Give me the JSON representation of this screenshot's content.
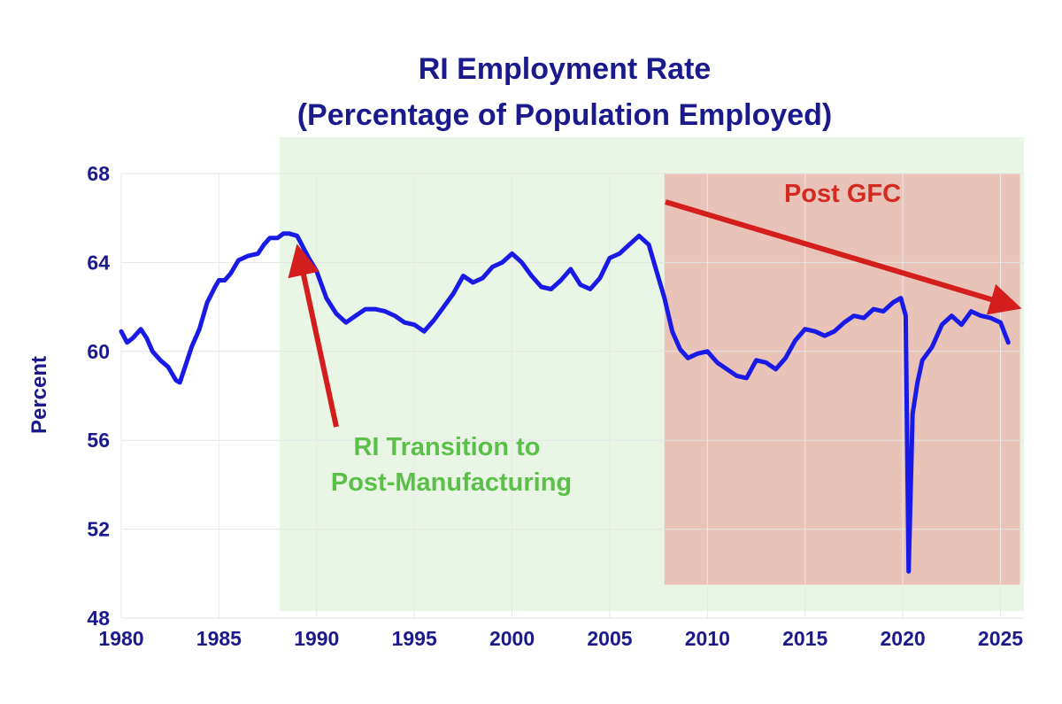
{
  "chart_data": {
    "type": "line",
    "title": "RI Employment Rate",
    "subtitle": "(Percentage of Population Employed)",
    "xlabel": "",
    "ylabel": "Percent",
    "xlim": [
      1980,
      2026.2
    ],
    "ylim": [
      48,
      68
    ],
    "x_ticks": [
      "1980",
      "1985",
      "1990",
      "1995",
      "2000",
      "2005",
      "2010",
      "2015",
      "2020",
      "2025"
    ],
    "y_ticks": [
      "48",
      "52",
      "56",
      "60",
      "64",
      "68"
    ],
    "grid": true,
    "series_color": "#1a1ae6",
    "series": [
      {
        "x": [
          1980.0,
          1980.3,
          1980.6,
          1981.0,
          1981.3,
          1981.6,
          1982.0,
          1982.4,
          1982.8,
          1983.0,
          1983.3,
          1983.6,
          1984.0,
          1984.4,
          1984.8,
          1985.0,
          1985.3,
          1985.6,
          1986.0,
          1986.5,
          1987.0,
          1987.3,
          1987.6,
          1988.0,
          1988.3,
          1988.6,
          1989.0,
          1989.3,
          1989.6,
          1990.0,
          1990.5,
          1991.0,
          1991.5,
          1992.0,
          1992.5,
          1993.0,
          1993.5,
          1994.0,
          1994.5,
          1995.0,
          1995.5,
          1996.0,
          1996.5,
          1997.0,
          1997.5,
          1998.0,
          1998.5,
          1999.0,
          1999.5,
          2000.0,
          2000.5,
          2001.0,
          2001.5,
          2002.0,
          2002.5,
          2003.0,
          2003.5,
          2004.0,
          2004.5,
          2005.0,
          2005.5,
          2006.0,
          2006.5,
          2007.0,
          2007.4,
          2007.8,
          2008.2,
          2008.6,
          2009.0,
          2009.5,
          2010.0,
          2010.5,
          2011.0,
          2011.5,
          2012.0,
          2012.5,
          2013.0,
          2013.5,
          2014.0,
          2014.5,
          2015.0,
          2015.5,
          2016.0,
          2016.5,
          2017.0,
          2017.5,
          2018.0,
          2018.5,
          2019.0,
          2019.5,
          2019.9,
          2020.15,
          2020.3,
          2020.5,
          2020.75,
          2021.0,
          2021.5,
          2022.0,
          2022.5,
          2023.0,
          2023.5,
          2024.0,
          2024.5,
          2025.0,
          2025.4
        ],
        "y": [
          60.9,
          60.4,
          60.6,
          61.0,
          60.6,
          60.0,
          59.6,
          59.3,
          58.7,
          58.6,
          59.4,
          60.2,
          61.0,
          62.2,
          62.9,
          63.2,
          63.2,
          63.5,
          64.1,
          64.3,
          64.4,
          64.8,
          65.1,
          65.1,
          65.3,
          65.3,
          65.2,
          64.7,
          64.2,
          63.6,
          62.4,
          61.7,
          61.3,
          61.6,
          61.9,
          61.9,
          61.8,
          61.6,
          61.3,
          61.2,
          60.9,
          61.4,
          62.0,
          62.6,
          63.4,
          63.1,
          63.3,
          63.8,
          64.0,
          64.4,
          64.0,
          63.4,
          62.9,
          62.8,
          63.2,
          63.7,
          63.0,
          62.8,
          63.3,
          64.2,
          64.4,
          64.8,
          65.2,
          64.8,
          63.6,
          62.4,
          60.9,
          60.1,
          59.7,
          59.9,
          60.0,
          59.5,
          59.2,
          58.9,
          58.8,
          59.6,
          59.5,
          59.2,
          59.7,
          60.5,
          61.0,
          60.9,
          60.7,
          60.9,
          61.3,
          61.6,
          61.5,
          61.9,
          61.8,
          62.2,
          62.4,
          61.6,
          50.1,
          57.2,
          58.6,
          59.6,
          60.2,
          61.2,
          61.6,
          61.2,
          61.8,
          61.6,
          61.5,
          61.3,
          60.4
        ]
      }
    ]
  },
  "regions": [
    {
      "name": "transition-band",
      "start": 1988.1,
      "end": 2026.2,
      "color": "#e9f6e6"
    },
    {
      "name": "post-gfc-band",
      "start": 2007.8,
      "end": 2026.0,
      "y_from": 49.5,
      "y_to": 68,
      "color": "#e9c3b8"
    }
  ],
  "annotations": {
    "transition_line1": "RI Transition to",
    "transition_line2": "Post-Manufacturing",
    "transition_color": "#5cbf4a",
    "gfc_label": "Post GFC",
    "gfc_color": "#d42a22",
    "arrow_color": "#d41e1e"
  }
}
